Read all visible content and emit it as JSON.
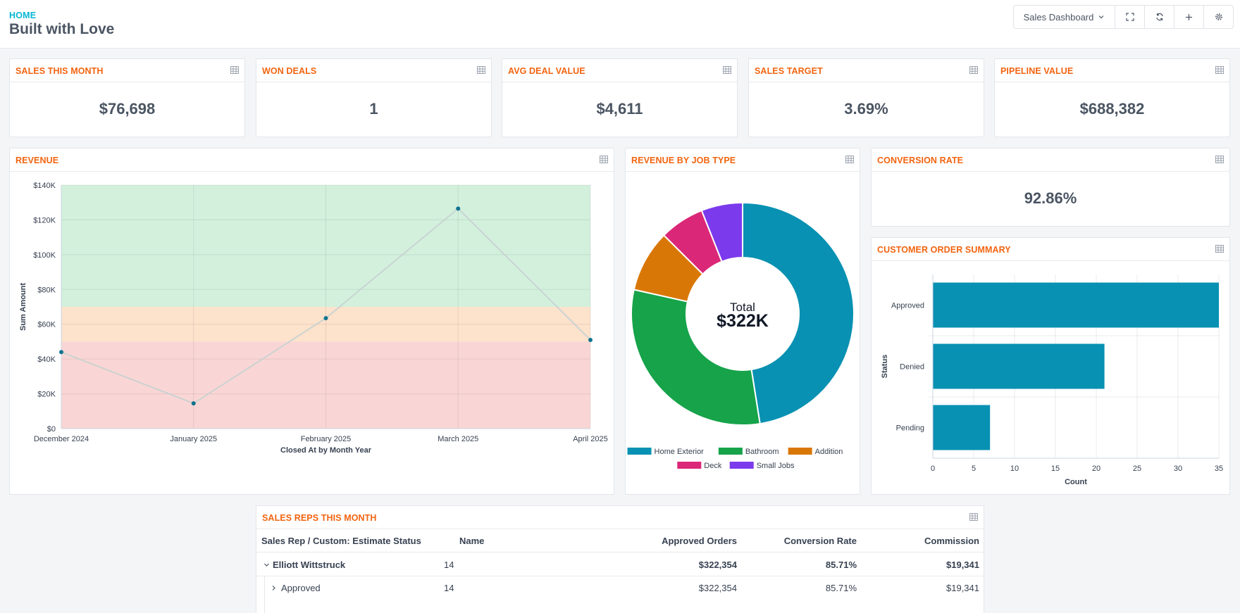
{
  "header": {
    "breadcrumb": "HOME",
    "title": "Built with Love",
    "dashboard_select": "Sales Dashboard"
  },
  "kpis": [
    {
      "title": "SALES THIS MONTH",
      "value": "$76,698"
    },
    {
      "title": "WON DEALS",
      "value": "1"
    },
    {
      "title": "AVG DEAL VALUE",
      "value": "$4,611"
    },
    {
      "title": "SALES TARGET",
      "value": "3.69%"
    },
    {
      "title": "PIPELINE VALUE",
      "value": "$688,382"
    }
  ],
  "conversion": {
    "title": "CONVERSION RATE",
    "value": "92.86%"
  },
  "revenue": {
    "title": "REVENUE",
    "chart_data": {
      "type": "line",
      "title": "REVENUE",
      "categories": [
        "December 2024",
        "January 2025",
        "February 2025",
        "March 2025",
        "April 2025"
      ],
      "values": [
        44000,
        14500,
        63500,
        126500,
        51000
      ],
      "xlabel": "Closed At by Month Year",
      "ylabel": "Sum Amount",
      "ylim": [
        0,
        140000
      ],
      "yticks": [
        "$0",
        "$20K",
        "$40K",
        "$60K",
        "$80K",
        "$100K",
        "$120K",
        "$140K"
      ],
      "bands": [
        {
          "from": 0,
          "to": 50000,
          "color": "#f9d6d5"
        },
        {
          "from": 50000,
          "to": 70000,
          "color": "#fde2cc"
        },
        {
          "from": 70000,
          "to": 140000,
          "color": "#d3f0dd"
        }
      ]
    }
  },
  "job_type": {
    "title": "REVENUE BY JOB TYPE",
    "chart_data": {
      "type": "pie",
      "center_label": "Total",
      "center_value": "$322K",
      "slices": [
        {
          "label": "Home Exterior",
          "value": 47.5,
          "color": "#0891b2"
        },
        {
          "label": "Bathroom",
          "value": 31.0,
          "color": "#16a34a"
        },
        {
          "label": "Addition",
          "value": 9.0,
          "color": "#d97706"
        },
        {
          "label": "Deck",
          "value": 6.5,
          "color": "#db2777"
        },
        {
          "label": "Small Jobs",
          "value": 6.0,
          "color": "#7c3aed"
        }
      ]
    }
  },
  "order_summary": {
    "title": "CUSTOMER ORDER SUMMARY",
    "chart_data": {
      "type": "bar",
      "orientation": "horizontal",
      "categories": [
        "Approved",
        "Denied",
        "Pending"
      ],
      "values": [
        35,
        21,
        7
      ],
      "xlabel": "Count",
      "ylabel": "Status",
      "xlim": [
        0,
        35
      ],
      "xticks": [
        "0",
        "5",
        "10",
        "15",
        "20",
        "25",
        "30",
        "35"
      ],
      "color": "#0891b2"
    }
  },
  "reps": {
    "title": "SALES REPS THIS MONTH",
    "columns": [
      "Sales Rep / Custom: Estimate Status",
      "Name",
      "Approved Orders",
      "Conversion Rate",
      "Commission"
    ],
    "rows": [
      {
        "name": "Elliott Wittstruck",
        "count": "14",
        "orders": "$322,354",
        "rate": "85.71%",
        "commission": "$19,341"
      },
      {
        "name": "Approved",
        "count": "14",
        "orders": "$322,354",
        "rate": "85.71%",
        "commission": "$19,341"
      }
    ]
  }
}
